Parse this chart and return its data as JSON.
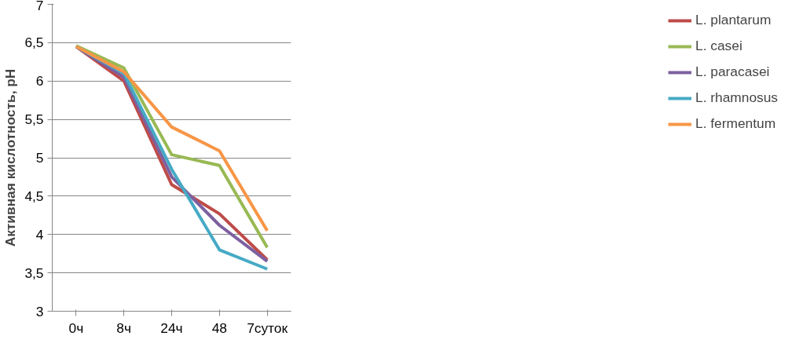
{
  "chart_data": {
    "type": "line",
    "ylabel": "Активная кислотность, pH",
    "categories": [
      "0ч",
      "8ч",
      "24ч",
      "48",
      "7суток"
    ],
    "series": [
      {
        "name": "L. plantarum",
        "color": "#be4b48",
        "values": [
          6.45,
          6.0,
          4.65,
          4.27,
          3.67
        ]
      },
      {
        "name": "L. casei",
        "color": "#98b954",
        "values": [
          6.46,
          6.17,
          5.04,
          4.9,
          3.83
        ]
      },
      {
        "name": "L. paracasei",
        "color": "#7d60a0",
        "values": [
          6.45,
          6.05,
          4.75,
          4.12,
          3.65
        ]
      },
      {
        "name": "L. rhamnosus",
        "color": "#46aac5",
        "values": [
          6.45,
          6.1,
          4.85,
          3.8,
          3.55
        ]
      },
      {
        "name": "L. fermentum",
        "color": "#f79646",
        "values": [
          6.45,
          6.12,
          5.4,
          5.09,
          4.05
        ]
      }
    ],
    "ylim": [
      3,
      7
    ],
    "yticks": [
      3,
      {
        "value": 3.5,
        "label": "3,5"
      },
      4,
      {
        "value": 4.5,
        "label": "4,5"
      },
      5,
      {
        "value": 5.5,
        "label": "5,5"
      },
      6,
      {
        "value": 6.5,
        "label": "6,5"
      },
      7
    ],
    "grid": "y",
    "legend": "right",
    "marker": "none",
    "line_style": "solid"
  }
}
